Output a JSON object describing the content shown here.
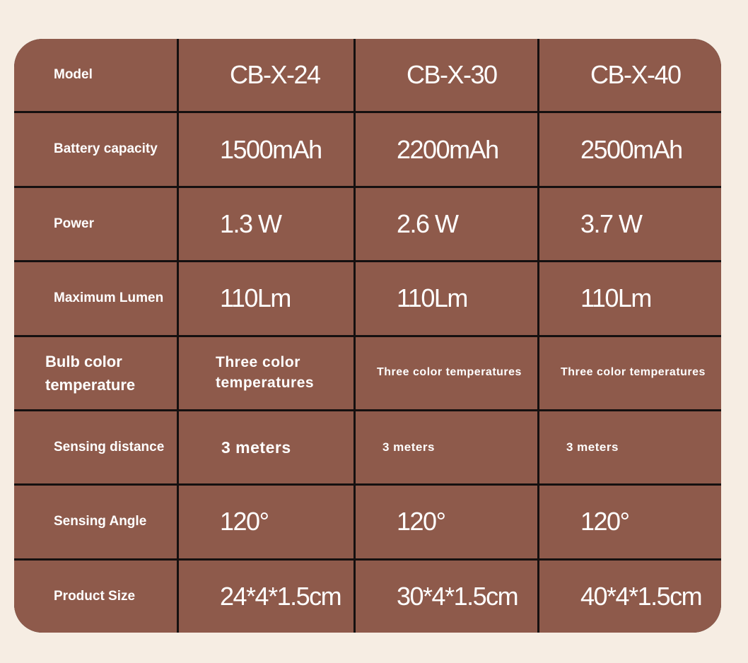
{
  "table": {
    "header": [
      "Model",
      "CB-X-24",
      "CB-X-30",
      "CB-X-40"
    ],
    "rows": [
      [
        "Battery capacity",
        "1500mAh",
        "2200mAh",
        "2500mAh"
      ],
      [
        "Power",
        "1.3 W",
        "2.6 W",
        "3.7 W"
      ],
      [
        "Maximum Lumen",
        "110Lm",
        "110Lm",
        "110Lm"
      ],
      [
        "Bulb color temperature",
        "Three color temperatures",
        "Three color temperatures",
        "Three color temperatures"
      ],
      [
        "Sensing distance",
        "3 meters",
        "3 meters",
        "3 meters"
      ],
      [
        "Sensing Angle",
        "120°",
        "120°",
        "120°"
      ],
      [
        "Product Size",
        "24*4*1.5cm",
        "30*4*1.5cm",
        "40*4*1.5cm"
      ]
    ]
  }
}
